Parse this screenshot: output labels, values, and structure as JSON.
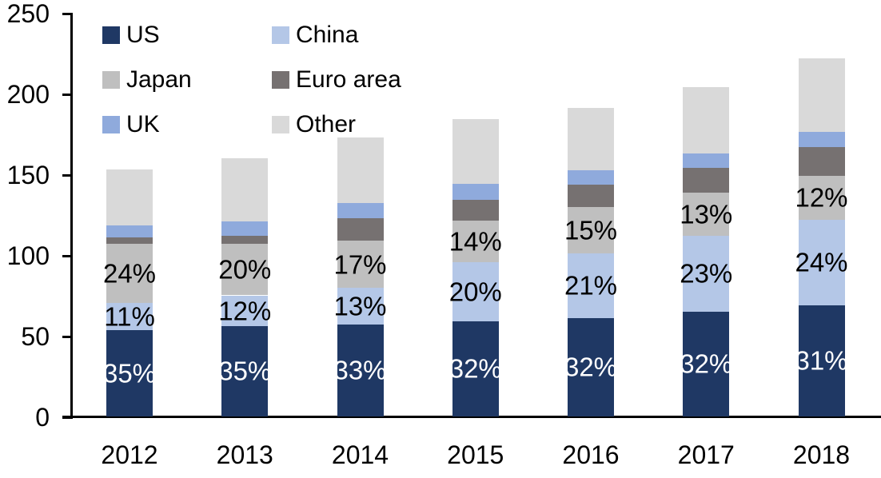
{
  "chart_data": {
    "type": "bar",
    "stacked": true,
    "title": "",
    "xlabel": "",
    "ylabel": "",
    "categories": [
      "2012",
      "2013",
      "2014",
      "2015",
      "2016",
      "2017",
      "2018"
    ],
    "series": [
      {
        "name": "US",
        "color": "#1F3864",
        "values": [
          53.5,
          56,
          57,
          59,
          61,
          65,
          69
        ],
        "labels": [
          "35%",
          "35%",
          "33%",
          "32%",
          "32%",
          "32%",
          "31%"
        ],
        "label_color": "#FFFFFF"
      },
      {
        "name": "China",
        "color": "#B4C7E7",
        "values": [
          17,
          19,
          22.5,
          36.5,
          40,
          47,
          53
        ],
        "labels": [
          "11%",
          "12%",
          "13%",
          "20%",
          "21%",
          "23%",
          "24%"
        ],
        "label_color": "#000000"
      },
      {
        "name": "Japan",
        "color": "#BFBFBF",
        "values": [
          36.5,
          32,
          29.5,
          26,
          28.5,
          26.5,
          27
        ],
        "labels": [
          "24%",
          "20%",
          "17%",
          "14%",
          "15%",
          "13%",
          "12%"
        ],
        "label_color": "#000000"
      },
      {
        "name": "Euro area",
        "color": "#767171",
        "values": [
          4,
          5,
          14,
          12.5,
          14,
          15.5,
          18
        ],
        "labels": null,
        "label_color": null
      },
      {
        "name": "UK",
        "color": "#8FAADC",
        "values": [
          7.5,
          9,
          9,
          10,
          9,
          9,
          9
        ],
        "labels": null,
        "label_color": null
      },
      {
        "name": "Other",
        "color": "#D9D9D9",
        "values": [
          34.5,
          39,
          41,
          40,
          38.5,
          41,
          46
        ],
        "labels": null,
        "label_color": null
      }
    ],
    "totals": [
      153,
      160,
      173,
      184,
      191,
      204,
      222
    ],
    "y_axis": {
      "min": 0,
      "max": 250,
      "step": 50,
      "tick_labels": [
        "0",
        "50",
        "100",
        "150",
        "200",
        "250"
      ]
    },
    "legend": {
      "position": "top-left",
      "columns": 2,
      "order": [
        "US",
        "China",
        "Japan",
        "Euro area",
        "UK",
        "Other"
      ]
    },
    "grid": false,
    "axis_color": "#000000",
    "background_color": "#FFFFFF"
  }
}
